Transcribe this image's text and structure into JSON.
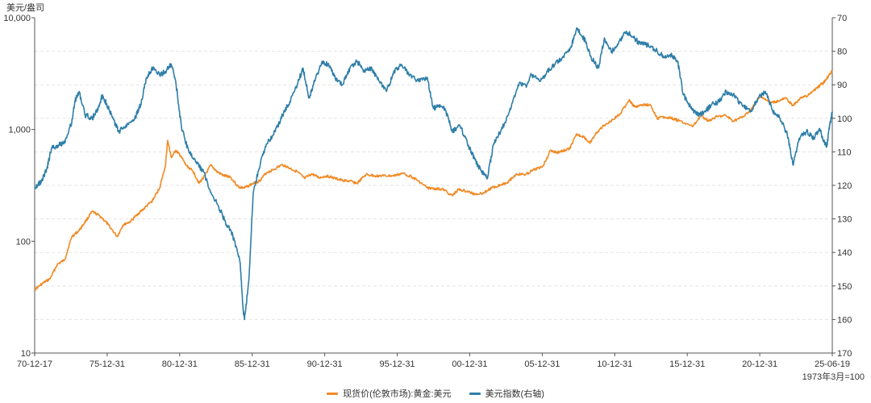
{
  "chart_data": {
    "type": "line",
    "left_unit": "美元/盎司",
    "right_note": "1973年3月=100",
    "x_ticks": [
      "70-12-17",
      "75-12-31",
      "80-12-31",
      "85-12-31",
      "90-12-31",
      "95-12-31",
      "00-12-31",
      "05-12-31",
      "10-12-31",
      "15-12-31",
      "20-12-31",
      "25-06-19"
    ],
    "x_start": 1970.96,
    "x_end": 2025.47,
    "y_left": {
      "scale": "log",
      "min": 10,
      "max": 10000,
      "tick_labels": [
        "10",
        "100",
        "1,000",
        "10,000"
      ],
      "tick_values": [
        10,
        100,
        1000,
        10000
      ]
    },
    "y_right": {
      "scale": "linear",
      "min": 70,
      "max": 170,
      "inverted": true,
      "tick_values": [
        70,
        80,
        90,
        100,
        110,
        120,
        130,
        140,
        150,
        160,
        170
      ]
    },
    "series": [
      {
        "name": "现货价(伦敦市场):黄金:美元",
        "color": "#f08a24",
        "axis": "left",
        "points": [
          [
            1970.96,
            37
          ],
          [
            1971.5,
            42
          ],
          [
            1972.0,
            46
          ],
          [
            1972.5,
            62
          ],
          [
            1973.0,
            68
          ],
          [
            1973.5,
            110
          ],
          [
            1974.0,
            125
          ],
          [
            1974.5,
            155
          ],
          [
            1974.9,
            185
          ],
          [
            1975.5,
            165
          ],
          [
            1976.0,
            140
          ],
          [
            1976.6,
            110
          ],
          [
            1977.0,
            140
          ],
          [
            1977.5,
            150
          ],
          [
            1978.0,
            175
          ],
          [
            1978.5,
            200
          ],
          [
            1979.0,
            230
          ],
          [
            1979.5,
            300
          ],
          [
            1979.9,
            480
          ],
          [
            1980.05,
            800
          ],
          [
            1980.3,
            560
          ],
          [
            1980.6,
            650
          ],
          [
            1980.9,
            590
          ],
          [
            1981.3,
            480
          ],
          [
            1981.8,
            420
          ],
          [
            1982.2,
            330
          ],
          [
            1982.6,
            390
          ],
          [
            1983.0,
            480
          ],
          [
            1983.4,
            420
          ],
          [
            1983.9,
            385
          ],
          [
            1984.3,
            380
          ],
          [
            1984.9,
            305
          ],
          [
            1985.3,
            300
          ],
          [
            1985.8,
            325
          ],
          [
            1986.3,
            345
          ],
          [
            1986.8,
            410
          ],
          [
            1987.3,
            440
          ],
          [
            1987.9,
            485
          ],
          [
            1988.4,
            450
          ],
          [
            1988.9,
            420
          ],
          [
            1989.4,
            365
          ],
          [
            1989.9,
            400
          ],
          [
            1990.4,
            370
          ],
          [
            1990.9,
            385
          ],
          [
            1991.5,
            365
          ],
          [
            1992.0,
            350
          ],
          [
            1992.5,
            345
          ],
          [
            1993.0,
            330
          ],
          [
            1993.6,
            395
          ],
          [
            1994.2,
            385
          ],
          [
            1994.8,
            385
          ],
          [
            1995.5,
            385
          ],
          [
            1996.1,
            405
          ],
          [
            1996.7,
            380
          ],
          [
            1997.2,
            345
          ],
          [
            1997.8,
            300
          ],
          [
            1998.4,
            295
          ],
          [
            1998.9,
            290
          ],
          [
            1999.5,
            255
          ],
          [
            1999.9,
            290
          ],
          [
            2000.5,
            280
          ],
          [
            2001.0,
            265
          ],
          [
            2001.6,
            270
          ],
          [
            2002.2,
            300
          ],
          [
            2002.8,
            320
          ],
          [
            2003.3,
            340
          ],
          [
            2003.9,
            400
          ],
          [
            2004.5,
            395
          ],
          [
            2005.0,
            430
          ],
          [
            2005.7,
            470
          ],
          [
            2006.2,
            650
          ],
          [
            2006.6,
            620
          ],
          [
            2007.0,
            640
          ],
          [
            2007.5,
            670
          ],
          [
            2008.0,
            900
          ],
          [
            2008.5,
            860
          ],
          [
            2008.9,
            750
          ],
          [
            2009.4,
            950
          ],
          [
            2009.9,
            1100
          ],
          [
            2010.5,
            1230
          ],
          [
            2011.0,
            1400
          ],
          [
            2011.6,
            1850
          ],
          [
            2011.9,
            1600
          ],
          [
            2012.5,
            1650
          ],
          [
            2013.0,
            1680
          ],
          [
            2013.5,
            1250
          ],
          [
            2014.0,
            1300
          ],
          [
            2014.6,
            1250
          ],
          [
            2015.0,
            1200
          ],
          [
            2015.9,
            1060
          ],
          [
            2016.5,
            1330
          ],
          [
            2017.0,
            1200
          ],
          [
            2017.6,
            1300
          ],
          [
            2018.2,
            1330
          ],
          [
            2018.7,
            1190
          ],
          [
            2019.4,
            1300
          ],
          [
            2019.9,
            1500
          ],
          [
            2020.6,
            2000
          ],
          [
            2021.2,
            1720
          ],
          [
            2021.8,
            1800
          ],
          [
            2022.3,
            1900
          ],
          [
            2022.8,
            1640
          ],
          [
            2023.4,
            1950
          ],
          [
            2023.9,
            2050
          ],
          [
            2024.4,
            2350
          ],
          [
            2024.9,
            2650
          ],
          [
            2025.2,
            3000
          ],
          [
            2025.47,
            3360
          ]
        ]
      },
      {
        "name": "美元指数(右轴)",
        "color": "#2e7ea8",
        "axis": "right",
        "points": [
          [
            1970.96,
            120.5
          ],
          [
            1971.4,
            119
          ],
          [
            1971.8,
            115
          ],
          [
            1972.1,
            109
          ],
          [
            1972.6,
            108
          ],
          [
            1973.0,
            107
          ],
          [
            1973.5,
            101
          ],
          [
            1973.7,
            95
          ],
          [
            1974.0,
            92
          ],
          [
            1974.4,
            99
          ],
          [
            1974.9,
            100
          ],
          [
            1975.3,
            97
          ],
          [
            1975.6,
            93
          ],
          [
            1975.9,
            96
          ],
          [
            1976.3,
            100
          ],
          [
            1976.7,
            104
          ],
          [
            1977.2,
            102
          ],
          [
            1977.8,
            100
          ],
          [
            1978.2,
            96
          ],
          [
            1978.6,
            88
          ],
          [
            1979.0,
            85
          ],
          [
            1979.5,
            87
          ],
          [
            1979.9,
            86
          ],
          [
            1980.3,
            84
          ],
          [
            1980.6,
            89
          ],
          [
            1981.0,
            103
          ],
          [
            1981.5,
            110
          ],
          [
            1982.0,
            113
          ],
          [
            1982.5,
            116
          ],
          [
            1983.0,
            122
          ],
          [
            1983.5,
            126
          ],
          [
            1984.0,
            131
          ],
          [
            1984.5,
            135
          ],
          [
            1985.0,
            143
          ],
          [
            1985.2,
            157
          ],
          [
            1985.3,
            160
          ],
          [
            1985.6,
            148
          ],
          [
            1985.9,
            122
          ],
          [
            1986.4,
            113
          ],
          [
            1986.9,
            107
          ],
          [
            1987.4,
            104
          ],
          [
            1987.9,
            99
          ],
          [
            1988.4,
            95
          ],
          [
            1988.9,
            90
          ],
          [
            1989.3,
            85
          ],
          [
            1989.7,
            94
          ],
          [
            1990.1,
            89
          ],
          [
            1990.6,
            83
          ],
          [
            1991.0,
            84
          ],
          [
            1991.5,
            88
          ],
          [
            1992.0,
            90
          ],
          [
            1992.5,
            85
          ],
          [
            1993.0,
            83
          ],
          [
            1993.5,
            86
          ],
          [
            1994.0,
            85
          ],
          [
            1994.5,
            89
          ],
          [
            1995.0,
            92
          ],
          [
            1995.5,
            86
          ],
          [
            1996.0,
            84
          ],
          [
            1996.6,
            87
          ],
          [
            1997.2,
            89
          ],
          [
            1997.8,
            88
          ],
          [
            1998.2,
            97
          ],
          [
            1998.6,
            96
          ],
          [
            1999.0,
            97
          ],
          [
            1999.5,
            104
          ],
          [
            2000.0,
            102
          ],
          [
            2000.6,
            108
          ],
          [
            2001.0,
            112
          ],
          [
            2001.5,
            116
          ],
          [
            2001.9,
            118
          ],
          [
            2002.3,
            108
          ],
          [
            2002.8,
            104
          ],
          [
            2003.4,
            98
          ],
          [
            2004.0,
            90
          ],
          [
            2004.6,
            90
          ],
          [
            2004.9,
            87
          ],
          [
            2005.5,
            89
          ],
          [
            2006.0,
            86
          ],
          [
            2006.5,
            84
          ],
          [
            2007.0,
            82
          ],
          [
            2007.6,
            79
          ],
          [
            2008.0,
            73
          ],
          [
            2008.6,
            77
          ],
          [
            2009.0,
            82
          ],
          [
            2009.5,
            85
          ],
          [
            2009.9,
            76
          ],
          [
            2010.4,
            80
          ],
          [
            2010.9,
            77
          ],
          [
            2011.4,
            74
          ],
          [
            2011.9,
            76
          ],
          [
            2012.4,
            78
          ],
          [
            2012.9,
            78
          ],
          [
            2013.5,
            80
          ],
          [
            2014.0,
            82
          ],
          [
            2014.5,
            81
          ],
          [
            2014.9,
            83
          ],
          [
            2015.3,
            93
          ],
          [
            2015.8,
            97
          ],
          [
            2016.3,
            99
          ],
          [
            2016.8,
            98
          ],
          [
            2017.2,
            96
          ],
          [
            2017.7,
            95
          ],
          [
            2018.2,
            92
          ],
          [
            2018.7,
            93
          ],
          [
            2019.3,
            96
          ],
          [
            2019.9,
            98
          ],
          [
            2020.4,
            94
          ],
          [
            2020.9,
            92
          ],
          [
            2021.4,
            98
          ],
          [
            2021.9,
            100
          ],
          [
            2022.4,
            105
          ],
          [
            2022.8,
            114
          ],
          [
            2023.2,
            106
          ],
          [
            2023.7,
            104
          ],
          [
            2024.2,
            106
          ],
          [
            2024.6,
            103
          ],
          [
            2024.9,
            107
          ],
          [
            2025.1,
            108
          ],
          [
            2025.3,
            102
          ],
          [
            2025.47,
            98
          ]
        ]
      }
    ]
  },
  "legend": [
    "现货价(伦敦市场):黄金:美元",
    "美元指数(右轴)"
  ]
}
